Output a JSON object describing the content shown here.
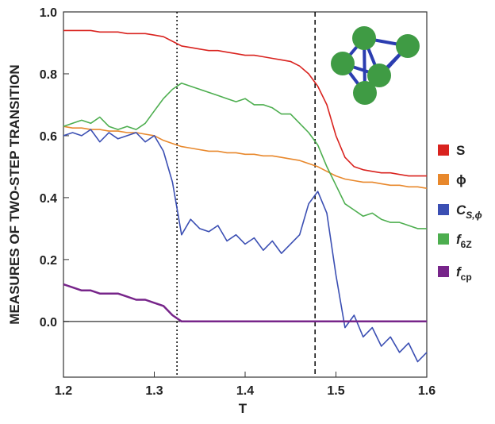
{
  "chart_data": {
    "type": "line",
    "x_label": "T",
    "y_label": "MEASURES OF TWO-STEP TRANSITION",
    "xlim": [
      1.2,
      1.6
    ],
    "ylim": [
      -0.18,
      1.0
    ],
    "xticks": [
      1.2,
      1.3,
      1.4,
      1.5,
      1.6
    ],
    "yticks": [
      {
        "value": 0,
        "label": "0.0"
      },
      0.2,
      0.4,
      0.6,
      0.8,
      {
        "value": 1,
        "label": "1.0"
      }
    ],
    "hline": 0,
    "vlines": [
      {
        "x": 1.325,
        "style": "dotted"
      },
      {
        "x": 1.477,
        "style": "dashed"
      }
    ],
    "x": [
      1.2,
      1.21,
      1.22,
      1.23,
      1.24,
      1.25,
      1.26,
      1.27,
      1.28,
      1.29,
      1.3,
      1.31,
      1.32,
      1.33,
      1.34,
      1.35,
      1.36,
      1.37,
      1.38,
      1.39,
      1.4,
      1.41,
      1.42,
      1.43,
      1.44,
      1.45,
      1.46,
      1.47,
      1.48,
      1.49,
      1.5,
      1.51,
      1.52,
      1.53,
      1.54,
      1.55,
      1.56,
      1.57,
      1.58,
      1.59,
      1.6
    ],
    "series": [
      {
        "name": "S",
        "color": "#d9231f",
        "values": [
          0.94,
          0.94,
          0.94,
          0.94,
          0.935,
          0.935,
          0.935,
          0.93,
          0.93,
          0.93,
          0.925,
          0.92,
          0.905,
          0.89,
          0.885,
          0.88,
          0.875,
          0.875,
          0.87,
          0.865,
          0.86,
          0.86,
          0.855,
          0.85,
          0.845,
          0.84,
          0.825,
          0.8,
          0.76,
          0.7,
          0.6,
          0.53,
          0.5,
          0.49,
          0.485,
          0.48,
          0.48,
          0.475,
          0.47,
          0.47,
          0.47
        ]
      },
      {
        "name": "ϕ",
        "color": "#e8882c",
        "values": [
          0.63,
          0.625,
          0.625,
          0.62,
          0.62,
          0.615,
          0.615,
          0.61,
          0.61,
          0.605,
          0.6,
          0.585,
          0.575,
          0.565,
          0.56,
          0.555,
          0.55,
          0.55,
          0.545,
          0.545,
          0.54,
          0.54,
          0.535,
          0.535,
          0.53,
          0.525,
          0.52,
          0.51,
          0.5,
          0.485,
          0.47,
          0.46,
          0.455,
          0.45,
          0.45,
          0.445,
          0.44,
          0.44,
          0.435,
          0.435,
          0.43
        ]
      },
      {
        "name": "C",
        "subscript": "S,ϕ",
        "color": "#3b4fb3",
        "values": [
          0.6,
          0.61,
          0.6,
          0.62,
          0.58,
          0.61,
          0.59,
          0.6,
          0.61,
          0.58,
          0.6,
          0.55,
          0.45,
          0.28,
          0.33,
          0.3,
          0.29,
          0.31,
          0.26,
          0.28,
          0.25,
          0.27,
          0.23,
          0.26,
          0.22,
          0.25,
          0.28,
          0.38,
          0.42,
          0.35,
          0.15,
          -0.02,
          0.02,
          -0.05,
          -0.02,
          -0.08,
          -0.05,
          -0.1,
          -0.07,
          -0.13,
          -0.1
        ]
      },
      {
        "name": "f",
        "subscript": "6Z",
        "color": "#4dae4f",
        "values": [
          0.63,
          0.64,
          0.65,
          0.64,
          0.66,
          0.63,
          0.62,
          0.63,
          0.62,
          0.64,
          0.68,
          0.72,
          0.75,
          0.77,
          0.76,
          0.75,
          0.74,
          0.73,
          0.72,
          0.71,
          0.72,
          0.7,
          0.7,
          0.69,
          0.67,
          0.67,
          0.64,
          0.61,
          0.57,
          0.5,
          0.44,
          0.38,
          0.36,
          0.34,
          0.35,
          0.33,
          0.32,
          0.32,
          0.31,
          0.3,
          0.3
        ]
      },
      {
        "name": "f",
        "subscript": "cp",
        "color": "#77258a",
        "values": [
          0.12,
          0.11,
          0.1,
          0.1,
          0.09,
          0.09,
          0.09,
          0.08,
          0.07,
          0.07,
          0.06,
          0.05,
          0.02,
          0,
          0,
          0,
          0,
          0,
          0,
          0,
          0,
          0,
          0,
          0,
          0,
          0,
          0,
          0,
          0,
          0,
          0,
          0,
          0,
          0,
          0,
          0,
          0,
          0,
          0,
          0,
          0
        ]
      }
    ]
  }
}
